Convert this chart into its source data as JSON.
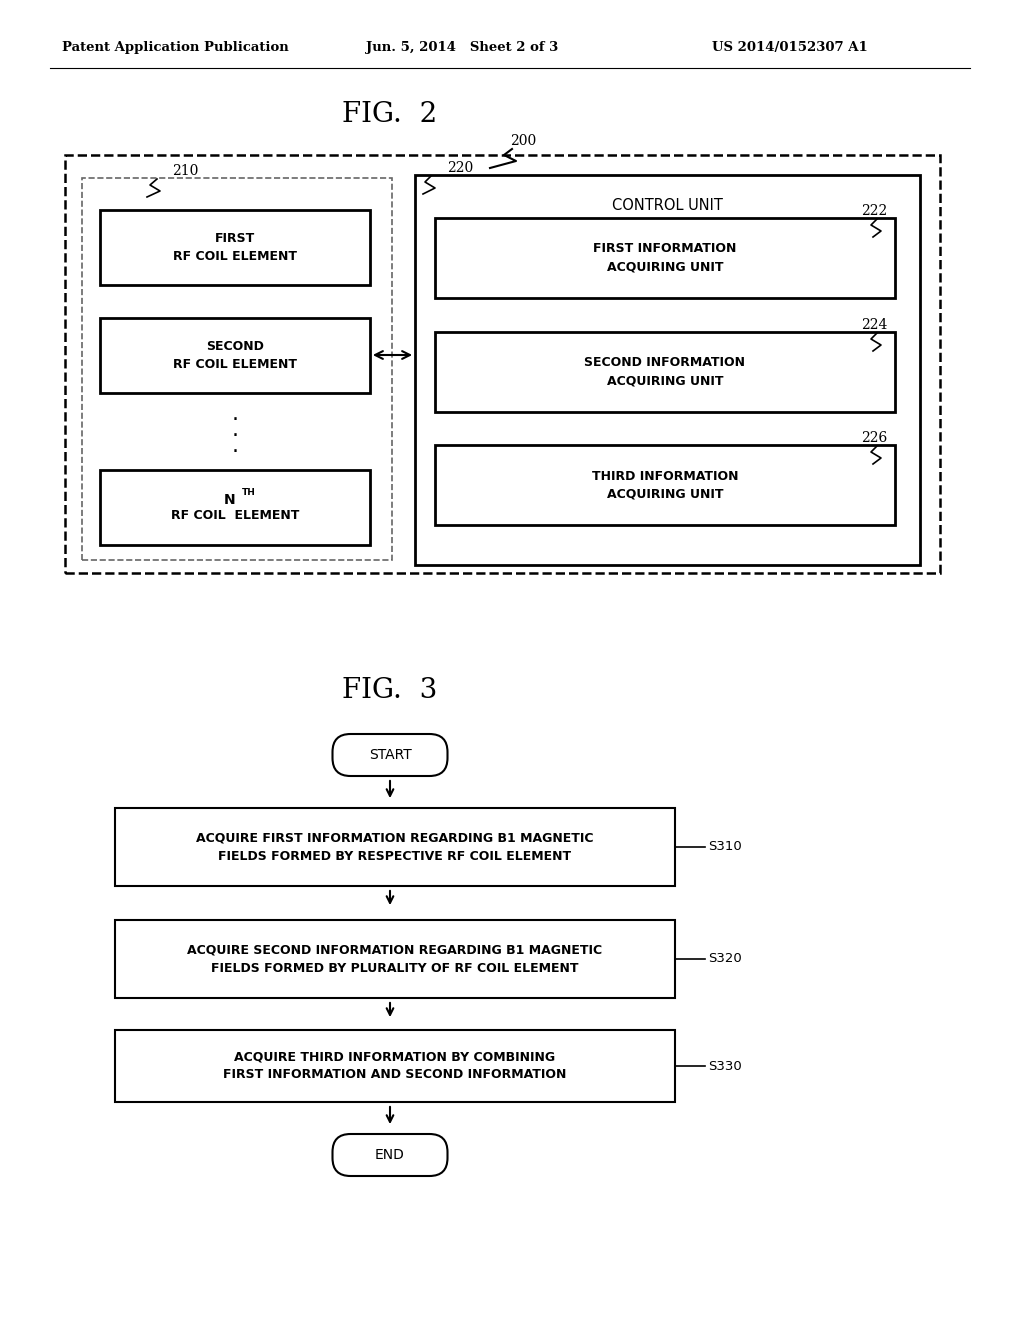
{
  "bg_color": "#ffffff",
  "header_left": "Patent Application Publication",
  "header_center": "Jun. 5, 2014   Sheet 2 of 3",
  "header_right": "US 2014/0152307 A1",
  "fig2_title": "FIG.  2",
  "fig3_title": "FIG.  3",
  "box_first_rf": "FIRST\nRF COIL ELEMENT",
  "box_second_rf": "SECOND\nRF COIL ELEMENT",
  "box_control": "CONTROL UNIT",
  "box_first_info": "FIRST INFORMATION\nACQUIRING UNIT",
  "box_second_info": "SECOND INFORMATION\nACQUIRING UNIT",
  "box_third_info": "THIRD INFORMATION\nACQUIRING UNIT",
  "start_label": "START",
  "end_label": "END",
  "step1_label": "ACQUIRE FIRST INFORMATION REGARDING B1 MAGNETIC\nFIELDS FORMED BY RESPECTIVE RF COIL ELEMENT",
  "step2_label": "ACQUIRE SECOND INFORMATION REGARDING B1 MAGNETIC\nFIELDS FORMED BY PLURALITY OF RF COIL ELEMENT",
  "step3_label": "ACQUIRE THIRD INFORMATION BY COMBINING\nFIRST INFORMATION AND SECOND INFORMATION",
  "s310": "S310",
  "s320": "S320",
  "s330": "S330",
  "lbl_200": "200",
  "lbl_210": "210",
  "lbl_220": "220",
  "lbl_222": "222",
  "lbl_224": "224",
  "lbl_226": "226"
}
